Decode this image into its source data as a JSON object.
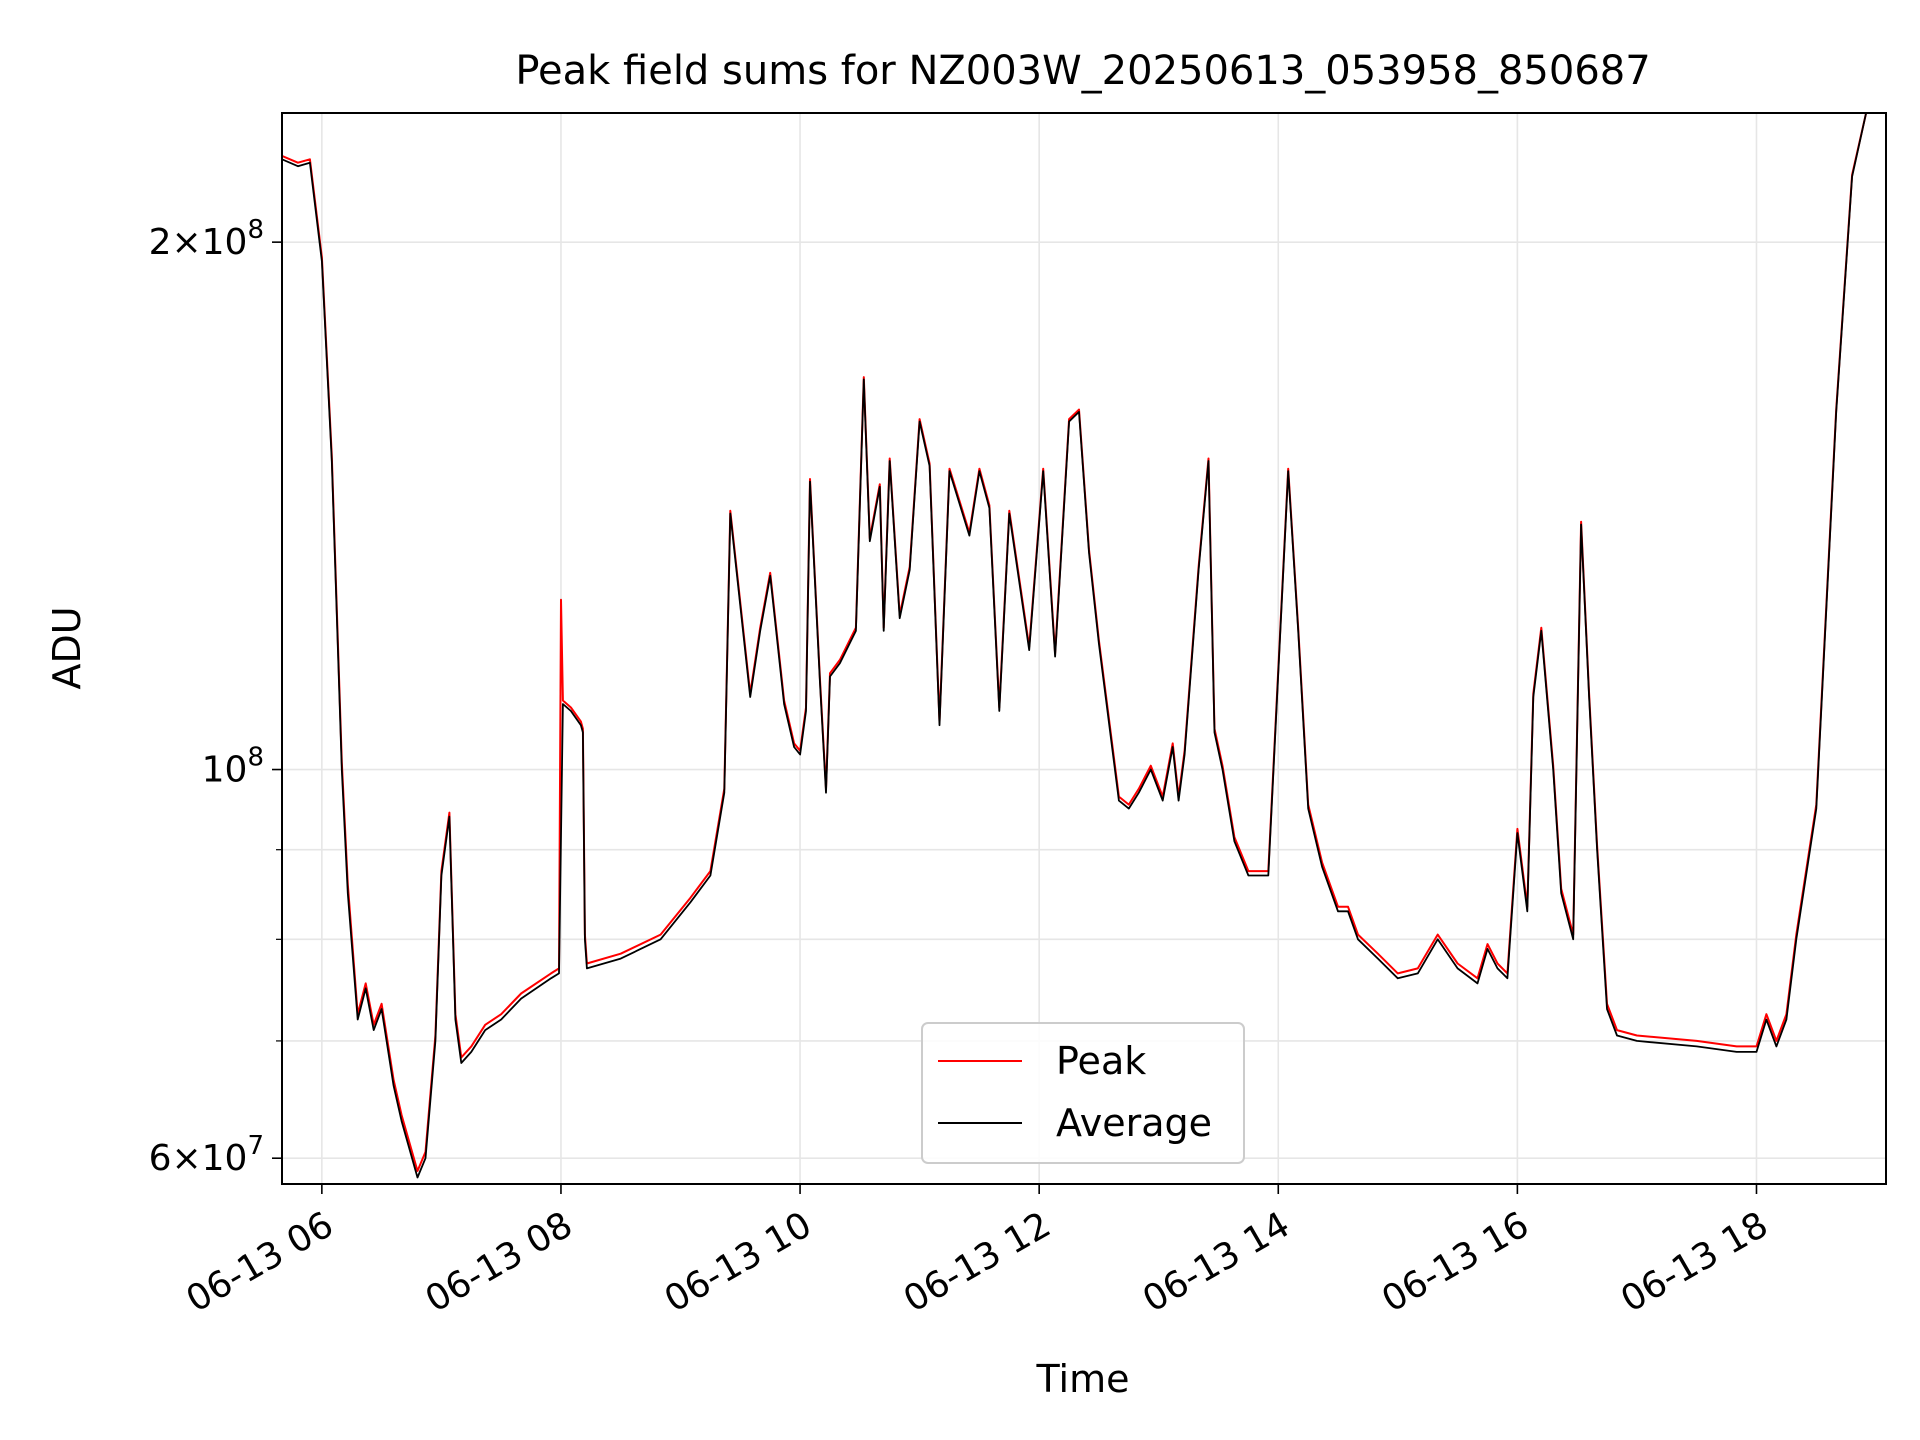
{
  "chart_data": {
    "type": "line",
    "title": "Peak field sums for NZ003W_20250613_053958_850687",
    "xlabel": "Time",
    "ylabel": "ADU",
    "yscale": "log",
    "xlim": [
      "2025-06-13 05:40",
      "2025-06-13 19:05"
    ],
    "ylim": [
      58000000,
      237000000
    ],
    "grid": true,
    "legend": {
      "position": "bottom-center",
      "entries": [
        "Peak",
        "Average"
      ]
    },
    "xtick_labels": [
      "06-13 06",
      "06-13 08",
      "06-13 10",
      "06-13 12",
      "06-13 14",
      "06-13 16",
      "06-13 18"
    ],
    "ytick_labels": [
      {
        "mantissa": "6",
        "exp": "7"
      },
      {
        "mantissa": "",
        "exp": "8"
      },
      {
        "mantissa": "2",
        "exp": "8"
      }
    ],
    "colors": {
      "Peak": "#ff0000",
      "Average": "#000000"
    },
    "series": [
      {
        "name": "Average",
        "x": [
          "05:40",
          "05:48",
          "05:54",
          "06:00",
          "06:05",
          "06:10",
          "06:13",
          "06:18",
          "06:22",
          "06:26",
          "06:30",
          "06:36",
          "06:40",
          "06:48",
          "06:52",
          "06:57",
          "07:00",
          "07:04",
          "07:07",
          "07:10",
          "07:15",
          "07:22",
          "07:30",
          "07:40",
          "07:55",
          "07:59",
          "08:01",
          "08:05",
          "08:10",
          "08:11",
          "08:12",
          "08:13",
          "08:30",
          "08:50",
          "09:05",
          "09:15",
          "09:22",
          "09:25",
          "09:35",
          "09:40",
          "09:45",
          "09:52",
          "09:57",
          "10:00",
          "10:03",
          "10:05",
          "10:10",
          "10:13",
          "10:15",
          "10:20",
          "10:28",
          "10:32",
          "10:35",
          "10:40",
          "10:42",
          "10:45",
          "10:50",
          "10:55",
          "11:00",
          "11:05",
          "11:10",
          "11:15",
          "11:25",
          "11:30",
          "11:35",
          "11:40",
          "11:45",
          "11:55",
          "12:02",
          "12:08",
          "12:15",
          "12:20",
          "12:25",
          "12:30",
          "12:40",
          "12:45",
          "12:50",
          "12:56",
          "13:02",
          "13:07",
          "13:10",
          "13:13",
          "13:20",
          "13:25",
          "13:28",
          "13:32",
          "13:38",
          "13:45",
          "13:55",
          "14:05",
          "14:10",
          "14:15",
          "14:22",
          "14:30",
          "14:35",
          "14:40",
          "14:50",
          "15:00",
          "15:10",
          "15:20",
          "15:30",
          "15:40",
          "15:45",
          "15:50",
          "15:55",
          "16:00",
          "16:05",
          "16:08",
          "16:12",
          "16:18",
          "16:22",
          "16:28",
          "16:32",
          "16:36",
          "16:40",
          "16:45",
          "16:50",
          "17:00",
          "17:30",
          "17:50",
          "18:00",
          "18:05",
          "18:10",
          "18:15",
          "18:20",
          "18:30",
          "18:40",
          "18:48",
          "18:55"
        ],
        "y": [
          223000000,
          221000000,
          222000000,
          195000000,
          150000000,
          100000000,
          85000000,
          72000000,
          75000000,
          71000000,
          73000000,
          66000000,
          63000000,
          58500000,
          60000000,
          70000000,
          87000000,
          94000000,
          72000000,
          68000000,
          69000000,
          71000000,
          72000000,
          74000000,
          76000000,
          76500000,
          109000000,
          108000000,
          106000000,
          105000000,
          80000000,
          77000000,
          78000000,
          80000000,
          84000000,
          87000000,
          97000000,
          140000000,
          110000000,
          120000000,
          129000000,
          109000000,
          103000000,
          102000000,
          108000000,
          146000000,
          112000000,
          97000000,
          113000000,
          115000000,
          120000000,
          167000000,
          135000000,
          145000000,
          120000000,
          150000000,
          122000000,
          130000000,
          158000000,
          149000000,
          106000000,
          148000000,
          136000000,
          148000000,
          141000000,
          108000000,
          140000000,
          117000000,
          148000000,
          116000000,
          158000000,
          160000000,
          133000000,
          118000000,
          96000000,
          95000000,
          97000000,
          100000000,
          96000000,
          103000000,
          96000000,
          102000000,
          130000000,
          150000000,
          105000000,
          100000000,
          91000000,
          87000000,
          87000000,
          148000000,
          120000000,
          95000000,
          88000000,
          83000000,
          83000000,
          80000000,
          78000000,
          76000000,
          76500000,
          80000000,
          77000000,
          75500000,
          79000000,
          77000000,
          76000000,
          92000000,
          83000000,
          110000000,
          120000000,
          100000000,
          85000000,
          80000000,
          138000000,
          110000000,
          90000000,
          73000000,
          70500000,
          70000000,
          69500000,
          69000000,
          69000000,
          72000000,
          69500000,
          72000000,
          80000000,
          95000000,
          160000000,
          218000000,
          237000000
        ]
      },
      {
        "name": "Peak",
        "x": [
          "05:40",
          "05:48",
          "05:54",
          "06:00",
          "06:05",
          "06:10",
          "06:13",
          "06:18",
          "06:22",
          "06:26",
          "06:30",
          "06:36",
          "06:40",
          "06:48",
          "06:52",
          "06:57",
          "07:00",
          "07:04",
          "07:07",
          "07:10",
          "07:15",
          "07:22",
          "07:30",
          "07:40",
          "07:55",
          "07:59",
          "08:00",
          "08:01",
          "08:05",
          "08:10",
          "08:11",
          "08:12",
          "08:13",
          "08:30",
          "08:50",
          "09:05",
          "09:15",
          "09:22",
          "09:25",
          "09:35",
          "09:40",
          "09:45",
          "09:52",
          "09:57",
          "10:00",
          "10:03",
          "10:05",
          "10:10",
          "10:13",
          "10:15",
          "10:20",
          "10:28",
          "10:32",
          "10:35",
          "10:40",
          "10:42",
          "10:45",
          "10:50",
          "10:55",
          "11:00",
          "11:05",
          "11:10",
          "11:15",
          "11:25",
          "11:30",
          "11:35",
          "11:40",
          "11:45",
          "11:55",
          "12:02",
          "12:08",
          "12:15",
          "12:20",
          "12:25",
          "12:30",
          "12:40",
          "12:45",
          "12:50",
          "12:56",
          "13:02",
          "13:07",
          "13:10",
          "13:13",
          "13:20",
          "13:25",
          "13:28",
          "13:32",
          "13:38",
          "13:45",
          "13:55",
          "14:05",
          "14:10",
          "14:15",
          "14:22",
          "14:30",
          "14:35",
          "14:40",
          "14:50",
          "15:00",
          "15:10",
          "15:20",
          "15:30",
          "15:40",
          "15:45",
          "15:50",
          "15:55",
          "16:00",
          "16:05",
          "16:08",
          "16:12",
          "16:18",
          "16:22",
          "16:28",
          "16:32",
          "16:36",
          "16:40",
          "16:45",
          "16:50",
          "17:00",
          "17:30",
          "17:50",
          "18:00",
          "18:05",
          "18:10",
          "18:15",
          "18:20",
          "18:30",
          "18:40",
          "18:48",
          "18:55"
        ],
        "y": [
          224000000,
          222000000,
          223000000,
          196000000,
          151000000,
          101000000,
          86000000,
          72500000,
          75500000,
          71500000,
          73500000,
          66500000,
          63500000,
          59000000,
          60500000,
          70500000,
          87500000,
          94500000,
          72500000,
          68500000,
          69500000,
          71500000,
          72500000,
          74500000,
          76500000,
          77000000,
          125000000,
          109500000,
          108500000,
          106500000,
          105500000,
          80500000,
          77500000,
          78500000,
          80500000,
          84500000,
          87500000,
          97500000,
          140500000,
          110500000,
          120500000,
          129500000,
          109500000,
          103500000,
          102500000,
          108500000,
          146500000,
          112500000,
          97500000,
          113500000,
          115500000,
          120500000,
          167500000,
          135500000,
          145500000,
          120500000,
          150500000,
          122500000,
          130500000,
          158500000,
          149500000,
          106500000,
          148500000,
          136500000,
          148500000,
          141500000,
          108500000,
          140500000,
          117500000,
          148500000,
          116500000,
          158500000,
          160500000,
          133500000,
          118500000,
          96500000,
          95500000,
          97500000,
          100500000,
          96500000,
          103500000,
          96500000,
          102500000,
          130500000,
          150500000,
          105500000,
          100500000,
          91500000,
          87500000,
          87500000,
          148500000,
          120500000,
          95500000,
          88500000,
          83500000,
          83500000,
          80500000,
          78500000,
          76500000,
          77000000,
          80500000,
          77500000,
          76000000,
          79500000,
          77500000,
          76500000,
          92500000,
          83500000,
          110500000,
          120500000,
          100500000,
          85500000,
          80500000,
          138500000,
          110500000,
          90500000,
          73500000,
          71000000,
          70500000,
          70000000,
          69500000,
          69500000,
          72500000,
          70000000,
          72500000,
          80500000,
          95500000,
          160500000,
          218500000,
          237000000
        ]
      }
    ]
  }
}
